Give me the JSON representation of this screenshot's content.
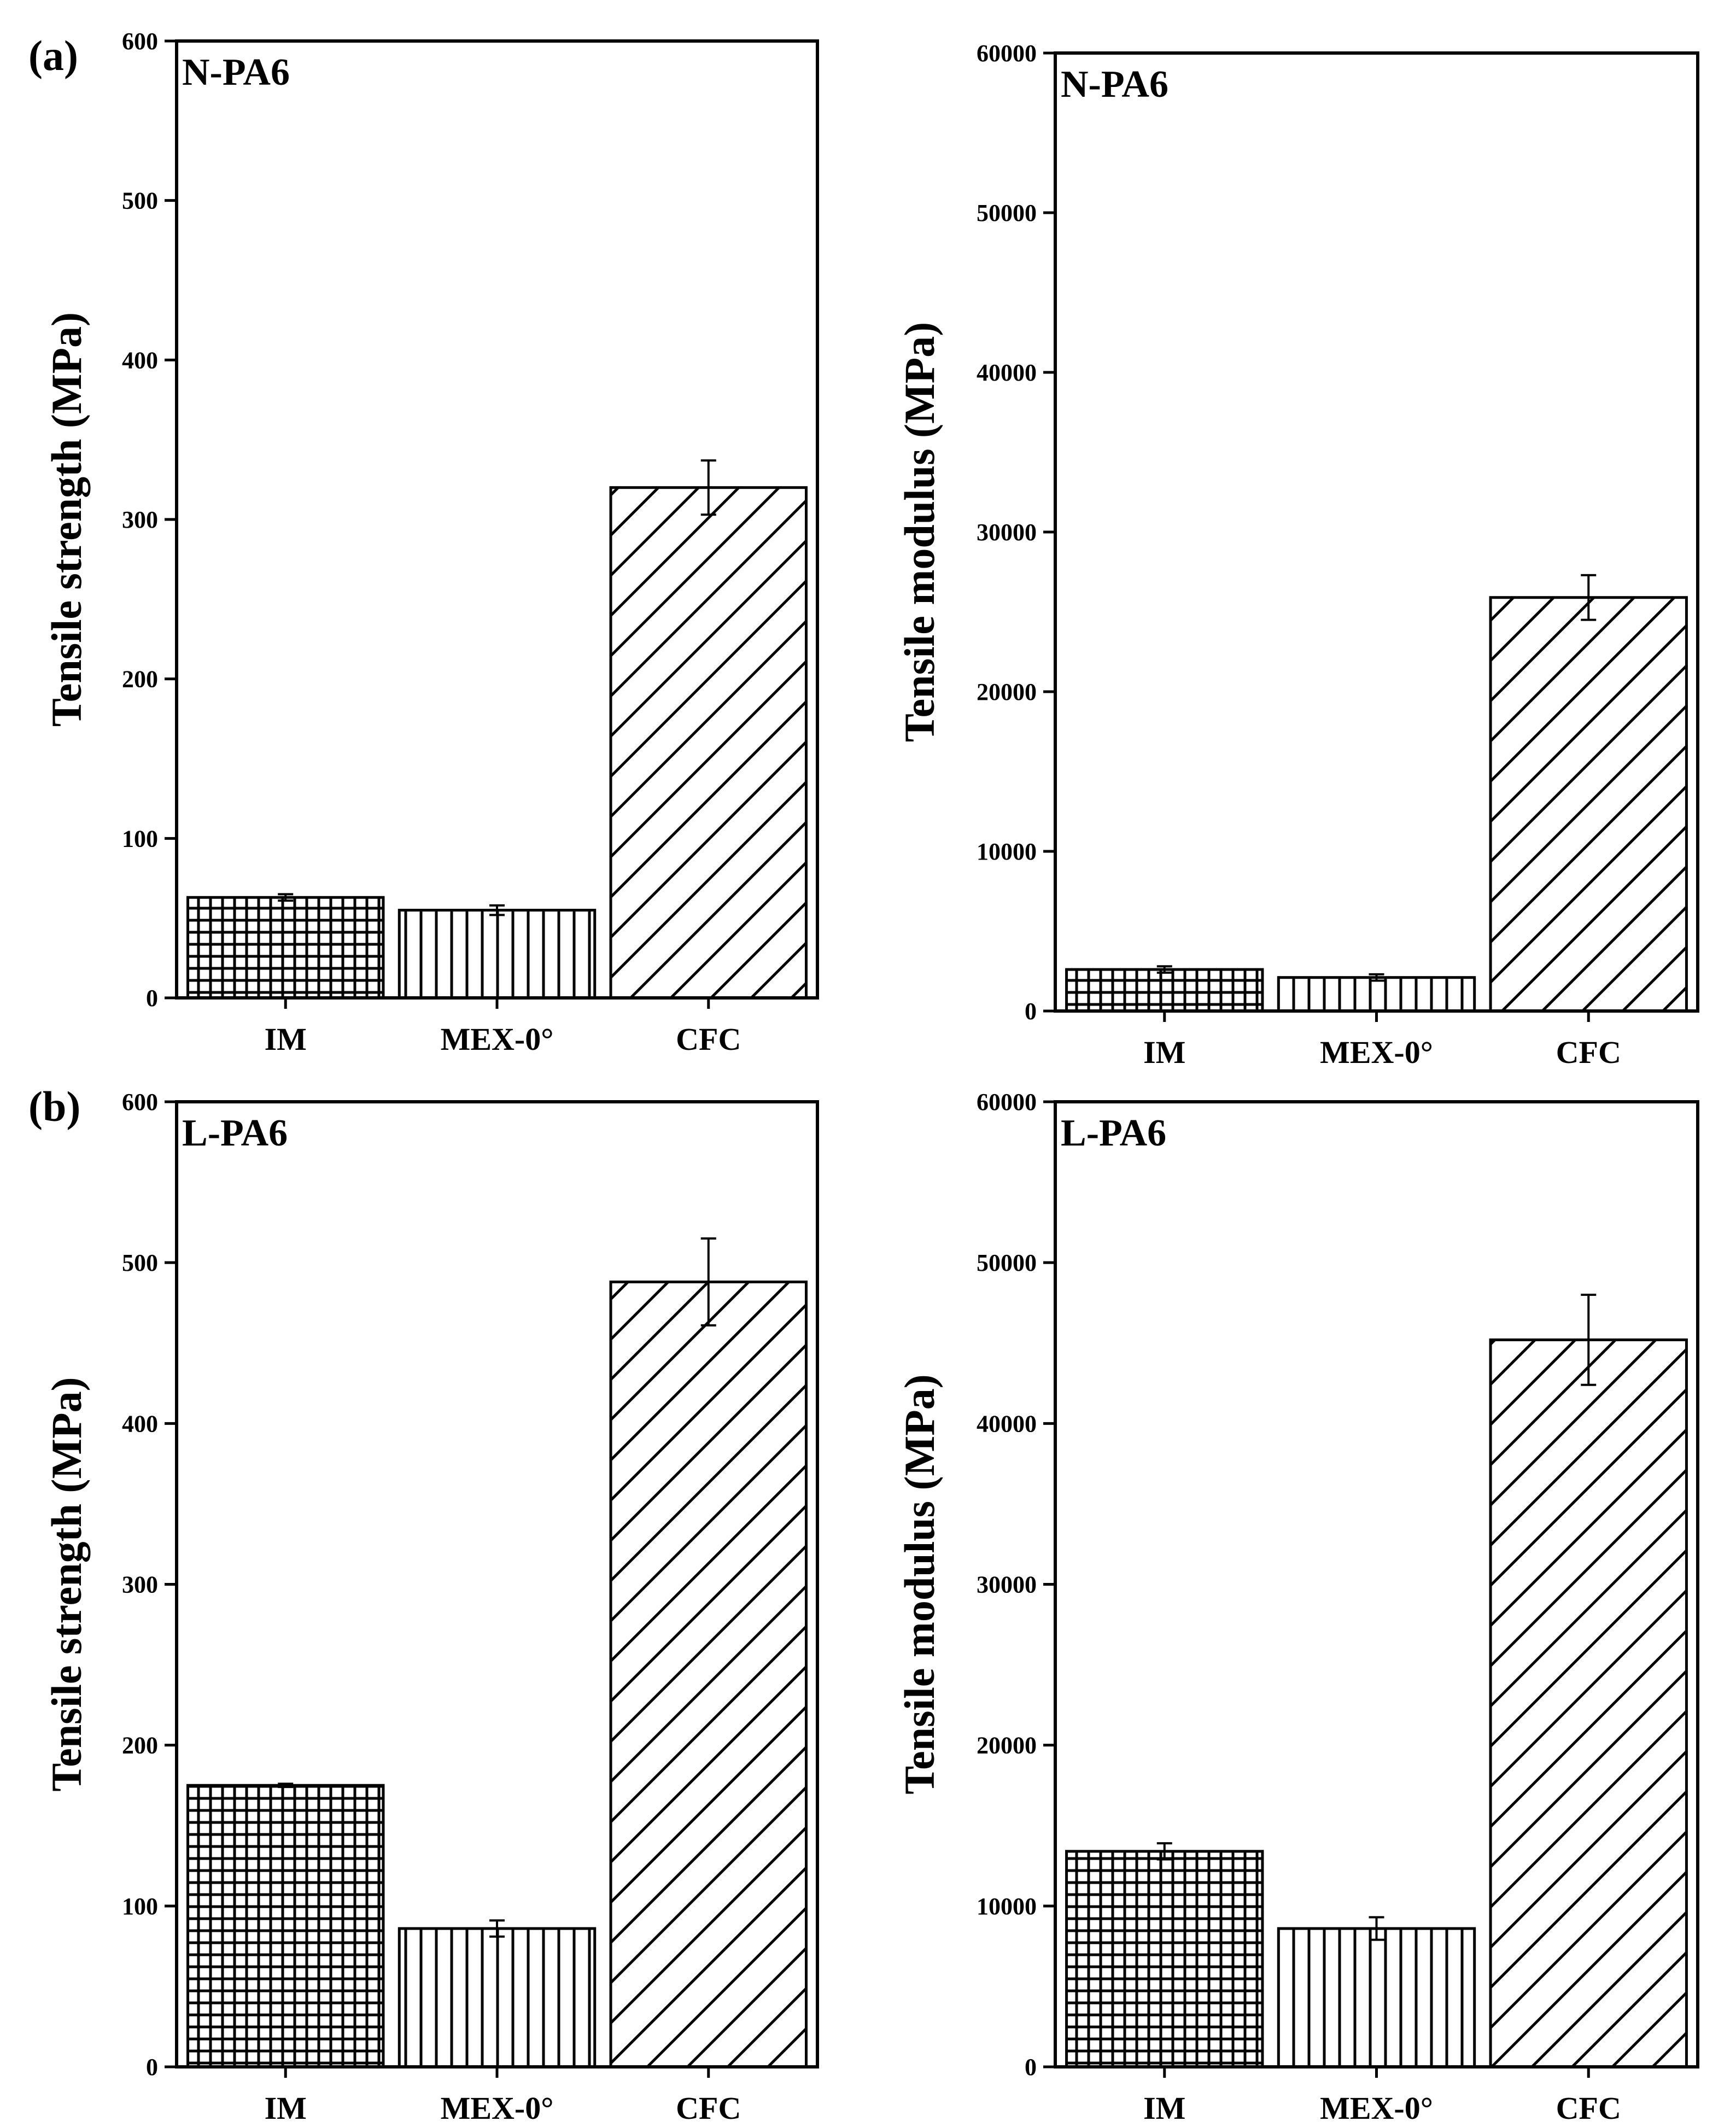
{
  "figure": {
    "panel_labels": [
      "(a)",
      "(b)"
    ]
  },
  "chart_data": [
    {
      "type": "bar",
      "title": "N-PA6",
      "ylabel": "Tensile strength (MPa)",
      "xlabel": "",
      "categories": [
        "IM",
        "MEX-0°",
        "CFC"
      ],
      "values": [
        63,
        55,
        320
      ],
      "errors": [
        2,
        3,
        17
      ],
      "patterns": [
        "grid",
        "vertical",
        "diagonal"
      ],
      "ylim": [
        0,
        600
      ],
      "yticks": [
        0,
        100,
        200,
        300,
        400,
        500,
        600
      ],
      "ytick_labels": [
        "0",
        "100",
        "200",
        "300",
        "400",
        "500",
        "600"
      ]
    },
    {
      "type": "bar",
      "title": "N-PA6",
      "ylabel": "Tensile modulus (MPa)",
      "xlabel": "",
      "categories": [
        "IM",
        "MEX-0°",
        "CFC"
      ],
      "values": [
        2600,
        2100,
        25900
      ],
      "errors": [
        200,
        200,
        1400
      ],
      "patterns": [
        "grid",
        "vertical",
        "diagonal"
      ],
      "ylim": [
        0,
        60000
      ],
      "yticks": [
        0,
        10000,
        20000,
        30000,
        40000,
        50000,
        60000
      ],
      "ytick_labels": [
        "0",
        "10000",
        "20000",
        "30000",
        "40000",
        "50000",
        "60000"
      ]
    },
    {
      "type": "bar",
      "title": "L-PA6",
      "ylabel": "Tensile strength (MPa)",
      "xlabel": "",
      "categories": [
        "IM",
        "MEX-0°",
        "CFC"
      ],
      "values": [
        175,
        86,
        488
      ],
      "errors": [
        1,
        5,
        27
      ],
      "patterns": [
        "grid",
        "vertical",
        "diagonal"
      ],
      "ylim": [
        0,
        600
      ],
      "yticks": [
        0,
        100,
        200,
        300,
        400,
        500,
        600
      ],
      "ytick_labels": [
        "0",
        "100",
        "200",
        "300",
        "400",
        "500",
        "600"
      ]
    },
    {
      "type": "bar",
      "title": "L-PA6",
      "ylabel": "Tensile modulus (MPa)",
      "xlabel": "",
      "categories": [
        "IM",
        "MEX-0°",
        "CFC"
      ],
      "values": [
        13400,
        8600,
        45200
      ],
      "errors": [
        500,
        700,
        2800
      ],
      "patterns": [
        "grid",
        "vertical",
        "diagonal"
      ],
      "ylim": [
        0,
        60000
      ],
      "yticks": [
        0,
        10000,
        20000,
        30000,
        40000,
        50000,
        60000
      ],
      "ytick_labels": [
        "0",
        "10000",
        "20000",
        "30000",
        "40000",
        "50000",
        "60000"
      ]
    }
  ]
}
